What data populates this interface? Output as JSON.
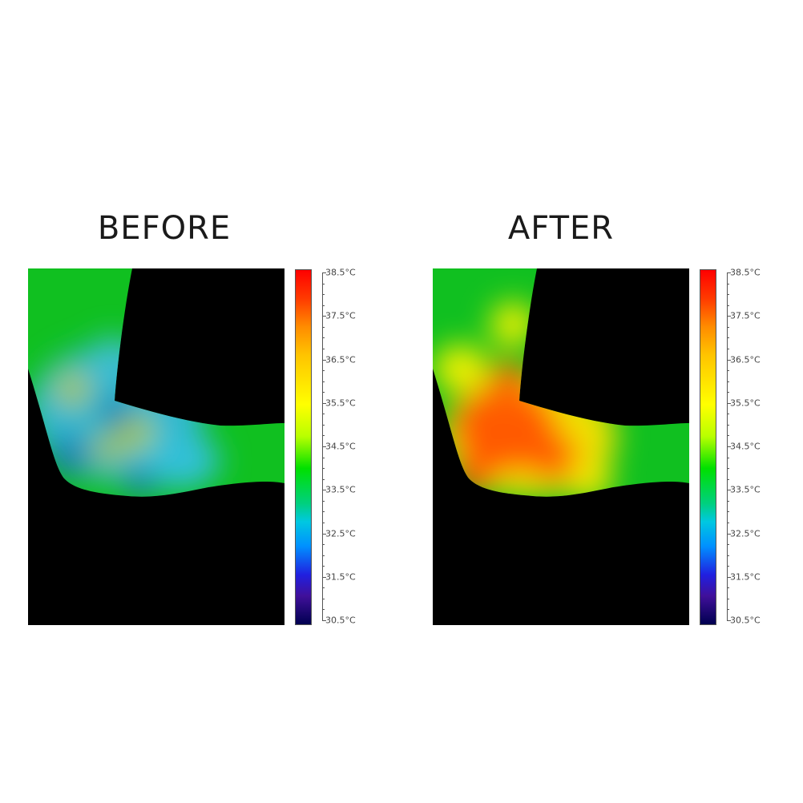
{
  "panels": [
    {
      "title": "BEFORE",
      "state": "cool",
      "colors": {
        "base": "#10c020"
      }
    },
    {
      "title": "AFTER",
      "state": "warm",
      "colors": {
        "base": "#10c020"
      }
    }
  ],
  "colorbar": {
    "min": 30.5,
    "max": 38.5,
    "labels": [
      "38.5°C",
      "37.5°C",
      "36.5°C",
      "35.5°C",
      "34.5°C",
      "33.5°C",
      "32.5°C",
      "31.5°C",
      "30.5°C"
    ],
    "colors": [
      "#ff0000",
      "#ff8c00",
      "#ffff00",
      "#00e000",
      "#00c8e0",
      "#2020e0",
      "#000050"
    ]
  }
}
